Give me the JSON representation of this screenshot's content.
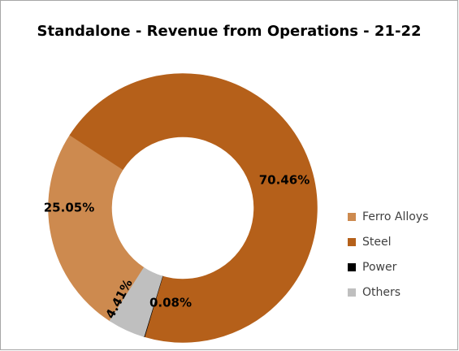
{
  "chart_data": {
    "type": "donut",
    "title": "Standalone - Revenue from Operations - 21-22",
    "categories": [
      "Ferro Alloys",
      "Steel",
      "Power",
      "Others"
    ],
    "values": [
      25.05,
      70.46,
      0.08,
      4.41
    ],
    "value_labels": [
      "25.05%",
      "70.46%",
      "0.08%",
      "4.41%"
    ],
    "colors": [
      "#cd8a4f",
      "#b5601a",
      "#000000",
      "#bfbfbf"
    ],
    "legend": "right"
  }
}
